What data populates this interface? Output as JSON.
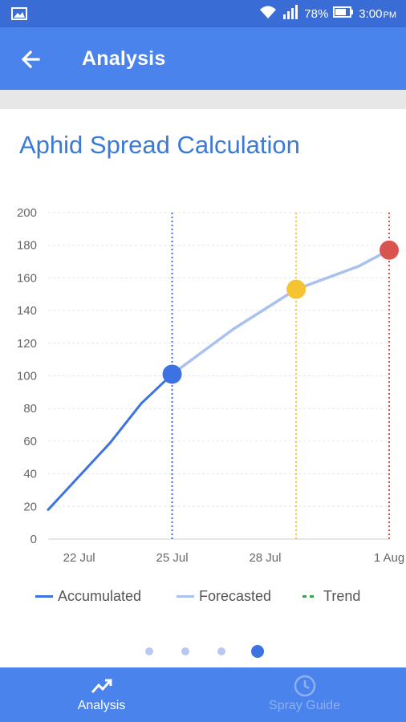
{
  "status_bar": {
    "battery_percent": "78%",
    "time": "3:00",
    "ampm": "PM",
    "icons": [
      "image-notification-icon",
      "wifi-icon",
      "signal-icon",
      "battery-icon"
    ]
  },
  "app_bar": {
    "title": "Analysis",
    "back_icon": "arrow-back-icon"
  },
  "colors": {
    "primary": "#4a83ec",
    "status_bar": "#3a6cd6",
    "accumulated": "#3d72e3",
    "forecasted": "#a9c1f0",
    "trend": "#3fa34d",
    "marker_current": "#3d72e3",
    "marker_forecast": "#f4c432",
    "marker_threshold": "#d9534f"
  },
  "chart_data": {
    "type": "line",
    "title": "Aphid Spread Calculation",
    "ylim": [
      0,
      200
    ],
    "yticks": [
      0,
      20,
      40,
      60,
      80,
      100,
      120,
      140,
      160,
      180,
      200
    ],
    "xlim": [
      "2023-07-21",
      "2023-08-01"
    ],
    "xticks": [
      {
        "label": "22 Jul",
        "x": "2023-07-22"
      },
      {
        "label": "25 Jul",
        "x": "2023-07-25"
      },
      {
        "label": "28 Jul",
        "x": "2023-07-28"
      },
      {
        "label": "1 Aug",
        "x": "2023-08-01"
      }
    ],
    "grid": true,
    "legend_position": "bottom",
    "series": [
      {
        "name": "Accumulated",
        "points": [
          {
            "x": "2023-07-21",
            "y": 18
          },
          {
            "x": "2023-07-23",
            "y": 59
          },
          {
            "x": "2023-07-24",
            "y": 83
          },
          {
            "x": "2023-07-25",
            "y": 101
          }
        ]
      },
      {
        "name": "Forecasted",
        "points": [
          {
            "x": "2023-07-25",
            "y": 101
          },
          {
            "x": "2023-07-27",
            "y": 129
          },
          {
            "x": "2023-07-29",
            "y": 153
          },
          {
            "x": "2023-07-31",
            "y": 167
          },
          {
            "x": "2023-08-01",
            "y": 177
          }
        ]
      },
      {
        "name": "Trend",
        "points": []
      }
    ],
    "markers": [
      {
        "x": "2023-07-25",
        "y": 101,
        "color": "#3d72e3"
      },
      {
        "x": "2023-07-29",
        "y": 153,
        "color": "#f4c432"
      },
      {
        "x": "2023-08-01",
        "y": 177,
        "color": "#d9534f"
      }
    ],
    "vertical_lines": [
      {
        "x": "2023-07-25",
        "color": "#3d72e3"
      },
      {
        "x": "2023-07-29",
        "color": "#f4c432"
      },
      {
        "x": "2023-08-01",
        "color": "#d9534f"
      }
    ]
  },
  "legend": {
    "accumulated": "Accumulated",
    "forecasted": "Forecasted",
    "trend": "Trend"
  },
  "pager": {
    "count": 4,
    "active_index": 3
  },
  "bottom_nav": {
    "items": [
      {
        "label": "Analysis",
        "icon": "trending-up-icon",
        "active": true
      },
      {
        "label": "Spray Guide",
        "icon": "clock-icon",
        "active": false
      }
    ]
  }
}
